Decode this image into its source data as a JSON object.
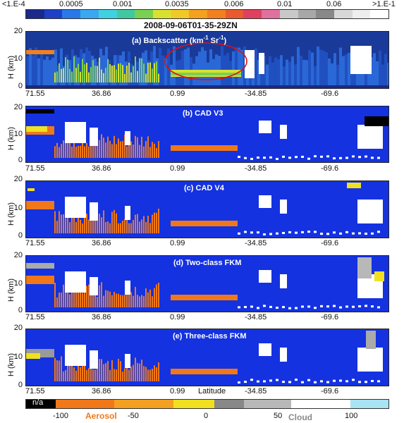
{
  "top_colorbar": {
    "tick_labels": [
      "<1.E-4",
      "0.0005",
      "0.001",
      "0.0035",
      "0.006",
      "0.01",
      "0.06",
      ">1.E-1"
    ],
    "colors": [
      "#1a2a8a",
      "#1e40c8",
      "#2a78e8",
      "#3aa8f0",
      "#40d0e0",
      "#40c8a0",
      "#7ad050",
      "#d8e030",
      "#f0c828",
      "#f4a020",
      "#f08020",
      "#e85a30",
      "#e04060",
      "#e070a0",
      "#c8c8c8",
      "#a8a8a8",
      "#888888",
      "#d8d8d8",
      "#eeeeee",
      "#ffffff"
    ]
  },
  "figure_id": "2008-09-06T01-35-29ZN",
  "panels": [
    {
      "label": "(a) Backscatter (km",
      "sup1": "-1",
      "mid": " Sr",
      "sup2": "-1",
      "end": ")"
    },
    {
      "label": "(b) CAD V3"
    },
    {
      "label": "(c) CAD V4"
    },
    {
      "label": "(d) Two-class FKM"
    },
    {
      "label": "(e) Three-class FKM"
    }
  ],
  "y_axis": {
    "label": "H (km)",
    "ticks": [
      "20",
      "10",
      "0"
    ]
  },
  "x_ticks": [
    "71.55",
    "36.86",
    "0.99",
    "-34.85",
    "-69.6"
  ],
  "x_axis_label": "Latitude",
  "bottom_colorbar": {
    "na_label": "n/a",
    "tick_labels": [
      "-100",
      "-50",
      "0",
      "50",
      "100"
    ],
    "aerosol_label": "Aerosol",
    "cloud_label": "Cloud",
    "colors": {
      "na": "#000000",
      "aerosol": "#f07818",
      "aerosol_light": "#f4a020",
      "yellow": "#f0e020",
      "grey_dark": "#888888",
      "grey": "#b8b8b8",
      "white": "#ffffff",
      "cyan": "#a8e4f4",
      "aerosol_text": "#f07818",
      "cloud_text": "#8a8a8a",
      "panel_bg": "#1432e0",
      "highlight": "#e01010"
    }
  }
}
